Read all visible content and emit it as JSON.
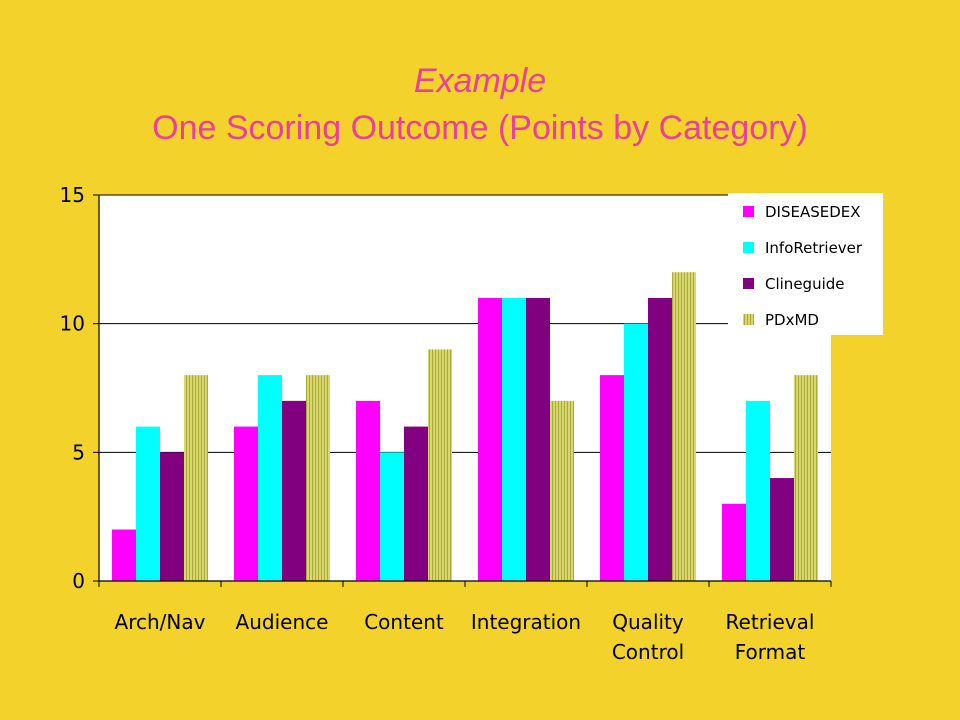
{
  "slide": {
    "title_line1": "Example",
    "title_line2": "One Scoring Outcome (Points by Category)"
  },
  "chart_data": {
    "type": "bar",
    "title": "",
    "xlabel": "",
    "ylabel": "",
    "ylim": [
      0,
      15
    ],
    "yticks": [
      "0",
      "5",
      "10",
      "15"
    ],
    "grid": true,
    "legend_position": "top-right",
    "categories": [
      [
        "Arch/Nav"
      ],
      [
        "Audience"
      ],
      [
        "Content"
      ],
      [
        "Integration"
      ],
      [
        "Quality",
        "Control"
      ],
      [
        "Retrieval",
        "Format"
      ]
    ],
    "series": [
      {
        "name": "DISEASEDEX",
        "color": "#ff00ff",
        "pattern": "solid",
        "values": [
          2,
          6,
          7,
          11,
          8,
          3
        ]
      },
      {
        "name": "InfoRetriever",
        "color": "#00ffff",
        "pattern": "solid",
        "values": [
          6,
          8,
          5,
          11,
          10,
          7
        ]
      },
      {
        "name": "Clineguide",
        "color": "#800080",
        "pattern": "solid",
        "values": [
          5,
          7,
          6,
          11,
          11,
          4
        ]
      },
      {
        "name": "PDxMD",
        "color": "#d4d468",
        "pattern": "hatched",
        "values": [
          8,
          8,
          9,
          7,
          12,
          8
        ]
      }
    ]
  }
}
